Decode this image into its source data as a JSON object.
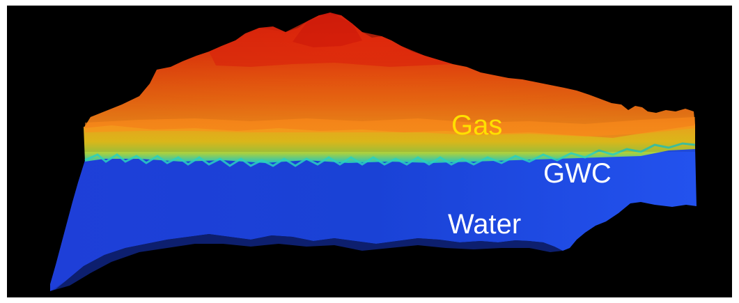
{
  "labels": {
    "gas": "Gas",
    "gwc": "GWC",
    "water": "Water"
  },
  "colors": {
    "background": "#000000",
    "frame": "#ffffff",
    "gas_zone_top": "#d81e0a",
    "gas_zone_mid": "#ee4a0c",
    "gas_zone_low": "#ff8a1a",
    "transition_yellow": "#f2c81c",
    "transition_teal": "#1fc8b6",
    "water_zone": "#1f48e0",
    "gas_label": "#ffe000",
    "gwc_label": "#ffffff",
    "water_label": "#ffffff"
  }
}
